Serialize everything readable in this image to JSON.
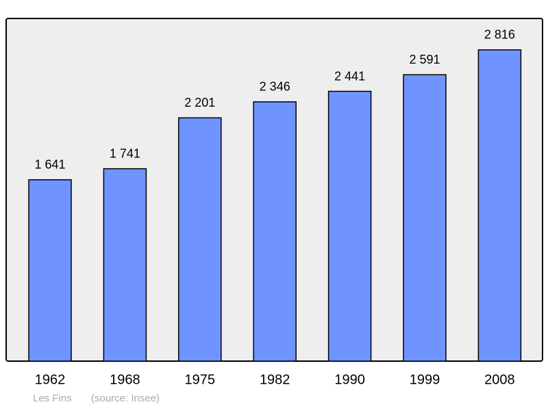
{
  "chart_data": {
    "type": "bar",
    "categories": [
      "1962",
      "1968",
      "1975",
      "1982",
      "1990",
      "1999",
      "2008"
    ],
    "values": [
      1641,
      1741,
      2201,
      2346,
      2441,
      2591,
      2816
    ],
    "value_labels": [
      "1 641",
      "1 741",
      "2 201",
      "2 346",
      "2 441",
      "2 591",
      "2 816"
    ],
    "color": "#7094ff",
    "ylim": [
      0,
      3100
    ],
    "place": "Les Fins",
    "source": "(source: Insee)"
  }
}
